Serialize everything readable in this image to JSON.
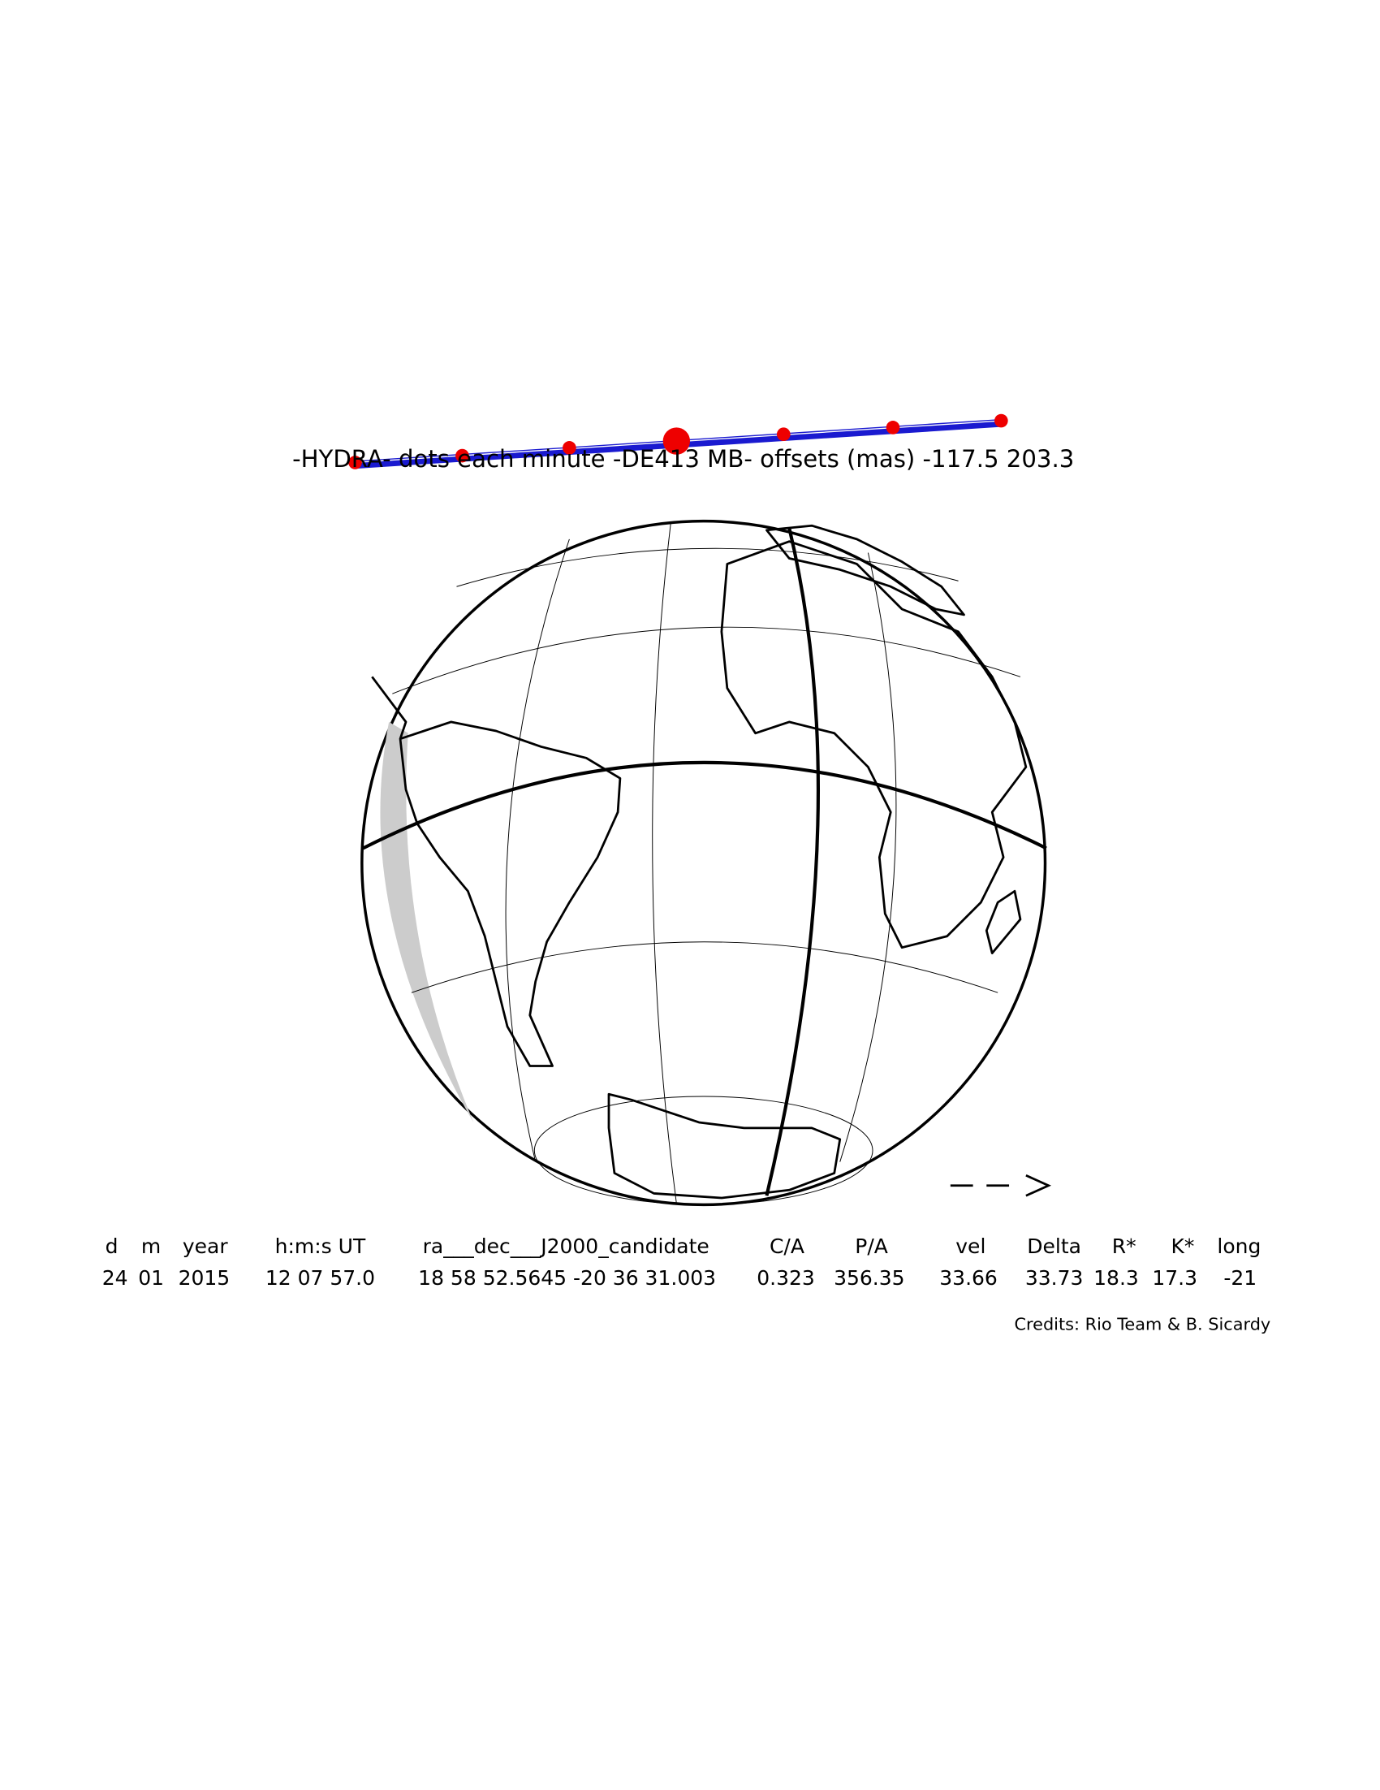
{
  "title": "-HYDRA- dots each minute -DE413 MB- offsets (mas) -117.5 203.3",
  "table": {
    "headers": [
      "d",
      "m",
      "year",
      "h:m:s UT",
      "ra___dec___J2000_candidate",
      "C/A",
      "P/A",
      "vel",
      "Delta",
      "R*",
      "K*",
      "long"
    ],
    "rows": [
      [
        "24",
        "01",
        "2015",
        "12 07 57.0",
        "18 58 52.5645 -20 36 31.003",
        "0.323",
        "356.35",
        "33.66",
        "33.73",
        "18.3",
        "17.3",
        "-21"
      ]
    ]
  },
  "credits": "Credits: Rio Team & B. Sicardy"
}
